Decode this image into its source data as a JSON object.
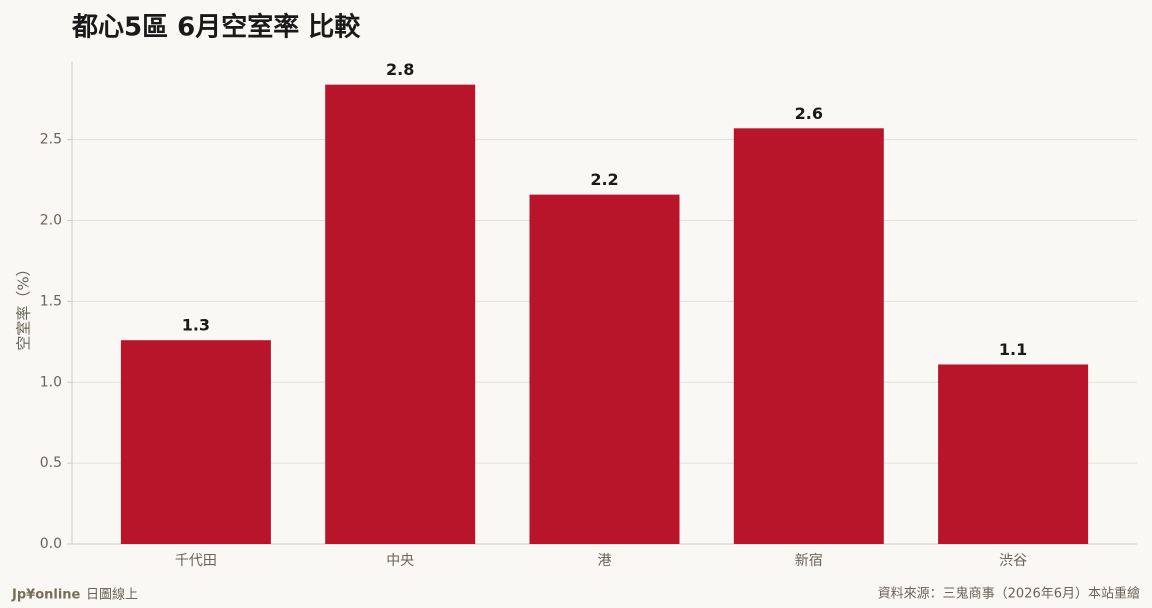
{
  "chart_data": {
    "type": "bar",
    "title": "都心5區 6月空室率 比較",
    "y_label": "空室率（%）",
    "categories": [
      "千代田",
      "中央",
      "港",
      "新宿",
      "渋谷"
    ],
    "values": [
      1.26,
      2.84,
      2.16,
      2.57,
      1.11
    ],
    "value_labels": [
      "1.3",
      "2.8",
      "2.2",
      "2.6",
      "1.1"
    ],
    "color": "#b8152b",
    "ylim": [
      0,
      2.98
    ],
    "yticks": [
      {
        "value": 0,
        "label": "0.0"
      },
      0.5,
      {
        "value": 1,
        "label": "1.0"
      },
      1.5,
      {
        "value": 2,
        "label": "2.0"
      },
      2.5
    ],
    "grid": true,
    "brand": "Jp¥online",
    "brand_sub": "日圖線上",
    "source": "資料來源：三鬼商事（2026年6月）本站重繪"
  }
}
